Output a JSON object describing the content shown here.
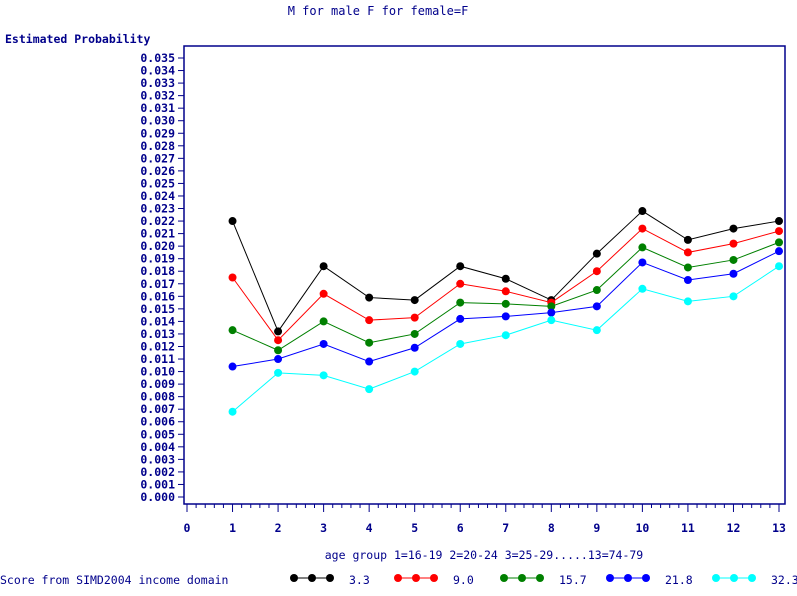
{
  "chart_data": {
    "type": "line",
    "title": "M for male F for female=F",
    "ylabel": "Estimated Probability",
    "xlabel": "age group 1=16-19 2=20-24 3=25-29.....13=74-79",
    "legend_title": "Score from SIMD2004 income domain",
    "xlim": [
      0,
      13
    ],
    "ylim": [
      0,
      0.035
    ],
    "x_ticks": [
      "0",
      "1",
      "2",
      "3",
      "4",
      "5",
      "6",
      "7",
      "8",
      "9",
      "10",
      "11",
      "12",
      "13"
    ],
    "y_ticks": [
      "0.000",
      "0.001",
      "0.002",
      "0.003",
      "0.004",
      "0.005",
      "0.006",
      "0.007",
      "0.008",
      "0.009",
      "0.010",
      "0.011",
      "0.012",
      "0.013",
      "0.014",
      "0.015",
      "0.016",
      "0.017",
      "0.018",
      "0.019",
      "0.020",
      "0.021",
      "0.022",
      "0.023",
      "0.024",
      "0.025",
      "0.026",
      "0.027",
      "0.028",
      "0.029",
      "0.030",
      "0.031",
      "0.032",
      "0.033",
      "0.034",
      "0.035"
    ],
    "x": [
      1,
      2,
      3,
      4,
      5,
      6,
      7,
      8,
      9,
      10,
      11,
      12,
      13
    ],
    "series": [
      {
        "name": "3.3",
        "color": "#000000",
        "values": [
          0.022,
          0.0132,
          0.0184,
          0.0159,
          0.0157,
          0.0184,
          0.0174,
          0.0157,
          0.0194,
          0.0228,
          0.0205,
          0.0214,
          0.022
        ]
      },
      {
        "name": "9.0",
        "color": "#ff0000",
        "values": [
          0.0175,
          0.0125,
          0.0162,
          0.0141,
          0.0143,
          0.017,
          0.0164,
          0.0155,
          0.018,
          0.0214,
          0.0195,
          0.0202,
          0.0212
        ]
      },
      {
        "name": "15.7",
        "color": "#008000",
        "values": [
          0.0133,
          0.0117,
          0.014,
          0.0123,
          0.013,
          0.0155,
          0.0154,
          0.0152,
          0.0165,
          0.0199,
          0.0183,
          0.0189,
          0.0203
        ]
      },
      {
        "name": "21.8",
        "color": "#0000ff",
        "values": [
          0.0104,
          0.011,
          0.0122,
          0.0108,
          0.0119,
          0.0142,
          0.0144,
          0.0147,
          0.0152,
          0.0187,
          0.0173,
          0.0178,
          0.0196
        ]
      },
      {
        "name": "32.3",
        "color": "#00ffff",
        "values": [
          0.0068,
          0.0099,
          0.0097,
          0.0086,
          0.01,
          0.0122,
          0.0129,
          0.0141,
          0.0133,
          0.0166,
          0.0156,
          0.016,
          0.0184
        ]
      }
    ]
  }
}
